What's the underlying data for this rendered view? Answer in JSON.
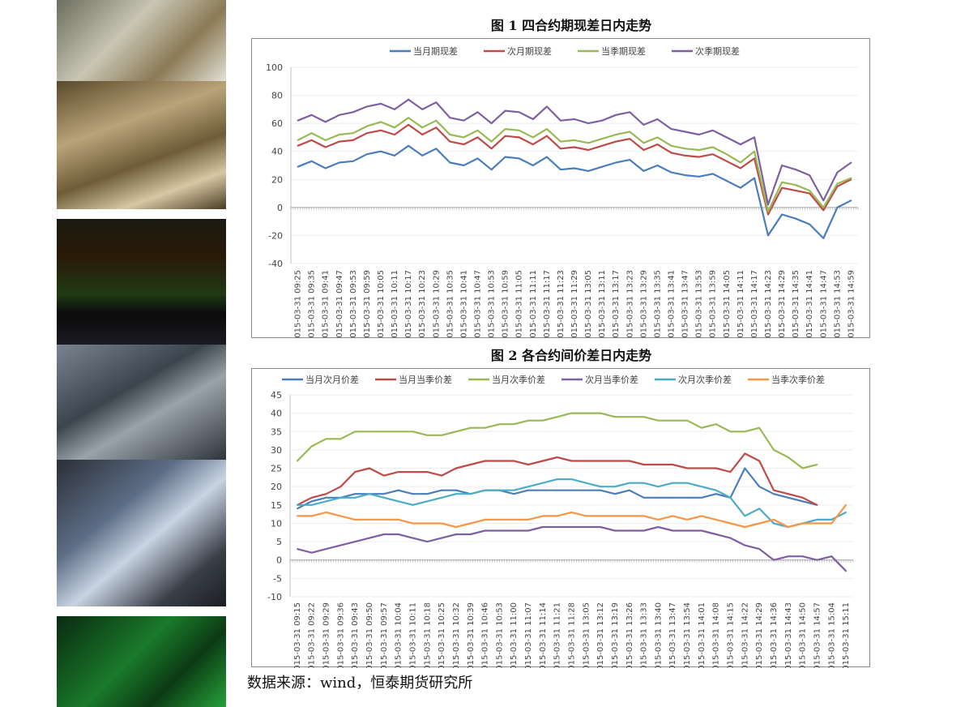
{
  "figure1": {
    "title": "图 1 四合约期现差日内走势",
    "chart_data": {
      "type": "line",
      "title": "",
      "yticks": [
        -40,
        -20,
        0,
        20,
        40,
        60,
        80,
        100
      ],
      "ylim": [
        -40,
        100
      ],
      "grid": true,
      "legend": "top",
      "categories": [
        "2015-03-31 09:25",
        "2015-03-31 09:35",
        "2015-03-31 09:41",
        "2015-03-31 09:47",
        "2015-03-31 09:53",
        "2015-03-31 09:59",
        "2015-03-31 10:05",
        "2015-03-31 10:11",
        "2015-03-31 10:17",
        "2015-03-31 10:23",
        "2015-03-31 10:29",
        "2015-03-31 10:35",
        "2015-03-31 10:41",
        "2015-03-31 10:47",
        "2015-03-31 10:53",
        "2015-03-31 10:59",
        "2015-03-31 11:05",
        "2015-03-31 11:11",
        "2015-03-31 11:17",
        "2015-03-31 11:23",
        "2015-03-31 11:29",
        "2015-03-31 13:05",
        "2015-03-31 13:11",
        "2015-03-31 13:17",
        "2015-03-31 13:23",
        "2015-03-31 13:29",
        "2015-03-31 13:35",
        "2015-03-31 13:41",
        "2015-03-31 13:47",
        "2015-03-31 13:53",
        "2015-03-31 13:59",
        "2015-03-31 14:05",
        "2015-03-31 14:11",
        "2015-03-31 14:17",
        "2015-03-31 14:23",
        "2015-03-31 14:29",
        "2015-03-31 14:35",
        "2015-03-31 14:41",
        "2015-03-31 14:47",
        "2015-03-31 14:53",
        "2015-03-31 14:59"
      ],
      "series": [
        {
          "name": "当月期现差",
          "color": "#4a7ebb",
          "values": [
            29,
            33,
            28,
            32,
            33,
            38,
            40,
            37,
            44,
            37,
            42,
            32,
            30,
            35,
            27,
            36,
            35,
            30,
            36,
            27,
            28,
            26,
            29,
            32,
            34,
            26,
            30,
            25,
            23,
            22,
            24,
            19,
            14,
            21,
            -20,
            -5,
            -8,
            -12,
            -22,
            0,
            5
          ]
        },
        {
          "name": "次月期现差",
          "color": "#be4b48",
          "values": [
            44,
            48,
            43,
            47,
            48,
            53,
            55,
            52,
            59,
            52,
            57,
            47,
            45,
            50,
            42,
            51,
            50,
            45,
            51,
            42,
            43,
            41,
            44,
            47,
            49,
            41,
            45,
            39,
            37,
            36,
            38,
            33,
            28,
            35,
            -5,
            14,
            12,
            10,
            -2,
            15,
            20
          ]
        },
        {
          "name": "当季期现差",
          "color": "#98b954",
          "values": [
            48,
            53,
            48,
            52,
            53,
            58,
            61,
            57,
            64,
            57,
            62,
            52,
            50,
            55,
            47,
            56,
            55,
            50,
            56,
            47,
            48,
            46,
            49,
            52,
            54,
            46,
            50,
            44,
            42,
            41,
            43,
            38,
            32,
            40,
            -3,
            18,
            16,
            12,
            0,
            17,
            21
          ]
        },
        {
          "name": "次季期现差",
          "color": "#7d60a0",
          "values": [
            62,
            66,
            61,
            66,
            68,
            72,
            74,
            70,
            77,
            70,
            75,
            64,
            62,
            68,
            60,
            69,
            68,
            63,
            72,
            62,
            63,
            60,
            62,
            66,
            68,
            59,
            63,
            56,
            54,
            52,
            55,
            50,
            45,
            50,
            2,
            30,
            27,
            23,
            5,
            25,
            32
          ]
        }
      ]
    }
  },
  "figure2": {
    "title": "图 2 各合约间价差日内走势",
    "chart_data": {
      "type": "line",
      "title": "",
      "yticks": [
        -10,
        -5,
        0,
        5,
        10,
        15,
        20,
        25,
        30,
        35,
        40,
        45
      ],
      "ylim": [
        -10,
        45
      ],
      "grid": true,
      "legend": "top",
      "categories": [
        "2015-03-31 09:15",
        "2015-03-31 09:22",
        "2015-03-31 09:29",
        "2015-03-31 09:36",
        "2015-03-31 09:43",
        "2015-03-31 09:50",
        "2015-03-31 09:57",
        "2015-03-31 10:04",
        "2015-03-31 10:11",
        "2015-03-31 10:18",
        "2015-03-31 10:25",
        "2015-03-31 10:32",
        "2015-03-31 10:39",
        "2015-03-31 10:46",
        "2015-03-31 10:53",
        "2015-03-31 11:00",
        "2015-03-31 11:07",
        "2015-03-31 11:14",
        "2015-03-31 11:21",
        "2015-03-31 11:28",
        "2015-03-31 13:05",
        "2015-03-31 13:12",
        "2015-03-31 13:19",
        "2015-03-31 13:26",
        "2015-03-31 13:33",
        "2015-03-31 13:40",
        "2015-03-31 13:47",
        "2015-03-31 13:54",
        "2015-03-31 14:01",
        "2015-03-31 14:08",
        "2015-03-31 14:15",
        "2015-03-31 14:22",
        "2015-03-31 14:29",
        "2015-03-31 14:36",
        "2015-03-31 14:43",
        "2015-03-31 14:50",
        "2015-03-31 14:57",
        "2015-03-31 15:04",
        "2015-03-31 15:11"
      ],
      "series": [
        {
          "name": "当月次月价差",
          "color": "#4a7ebb",
          "values": [
            14,
            16,
            17,
            17,
            18,
            18,
            18,
            19,
            18,
            18,
            19,
            19,
            18,
            19,
            19,
            18,
            19,
            19,
            19,
            19,
            19,
            19,
            18,
            19,
            17,
            17,
            17,
            17,
            17,
            18,
            17,
            25,
            20,
            18,
            17,
            16,
            15,
            null,
            null
          ]
        },
        {
          "name": "当月当季价差",
          "color": "#be4b48",
          "values": [
            15,
            17,
            18,
            20,
            24,
            25,
            23,
            24,
            24,
            24,
            23,
            25,
            26,
            27,
            27,
            27,
            26,
            27,
            28,
            27,
            27,
            27,
            27,
            27,
            26,
            26,
            26,
            25,
            25,
            25,
            24,
            29,
            27,
            19,
            18,
            17,
            15,
            null,
            null
          ]
        },
        {
          "name": "当月次季价差",
          "color": "#98b954",
          "values": [
            27,
            31,
            33,
            33,
            35,
            35,
            35,
            35,
            35,
            34,
            34,
            35,
            36,
            36,
            37,
            37,
            38,
            38,
            39,
            40,
            40,
            40,
            39,
            39,
            39,
            38,
            38,
            38,
            36,
            37,
            35,
            35,
            36,
            30,
            28,
            25,
            26,
            null,
            null
          ]
        },
        {
          "name": "次月当季价差",
          "color": "#7d60a0",
          "values": [
            3,
            2,
            3,
            4,
            5,
            6,
            7,
            7,
            6,
            5,
            6,
            7,
            7,
            8,
            8,
            8,
            8,
            9,
            9,
            9,
            9,
            9,
            8,
            8,
            8,
            9,
            8,
            8,
            8,
            7,
            6,
            4,
            3,
            0,
            1,
            1,
            0,
            1,
            -3
          ]
        },
        {
          "name": "次月次季价差",
          "color": "#4bacc6",
          "values": [
            15,
            15,
            16,
            17,
            17,
            18,
            17,
            16,
            15,
            16,
            17,
            18,
            18,
            19,
            19,
            19,
            20,
            21,
            22,
            22,
            21,
            20,
            20,
            21,
            21,
            20,
            21,
            21,
            20,
            19,
            17,
            12,
            14,
            10,
            9,
            10,
            11,
            11,
            13
          ]
        },
        {
          "name": "当季次季价差",
          "color": "#f79646",
          "values": [
            12,
            12,
            13,
            12,
            11,
            11,
            11,
            11,
            10,
            10,
            10,
            9,
            10,
            11,
            11,
            11,
            11,
            12,
            12,
            13,
            12,
            12,
            12,
            12,
            12,
            11,
            12,
            11,
            12,
            11,
            10,
            9,
            10,
            11,
            9,
            10,
            10,
            10,
            15
          ]
        }
      ]
    }
  },
  "source": "数据来源：wind，恒泰期货研究所"
}
